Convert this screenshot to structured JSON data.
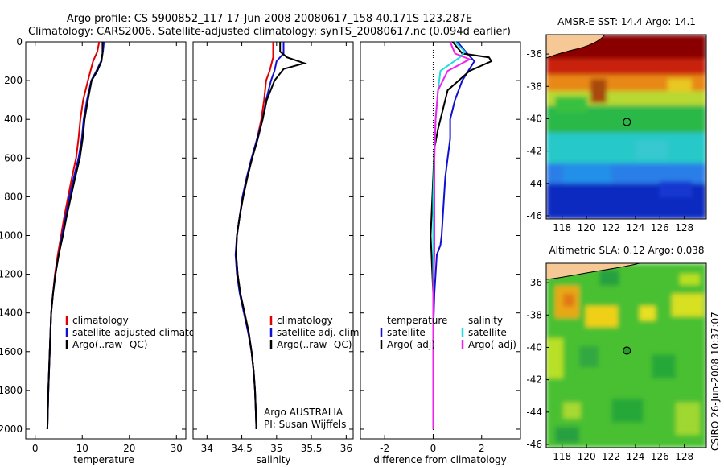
{
  "header": {
    "line1": "Argo profile: CS 5900852_117 17-Jun-2008 20080617_158 40.171S 123.287E",
    "line2": "Climatology: CARS2006. Satellite-adjusted climatology: synTS_20080617.nc (0.094d earlier)"
  },
  "side_text": "CSIRO 26-Jun-2008 10:37:07",
  "colors": {
    "climatology": "#e00000",
    "satellite": "#1010d0",
    "argo": "#000000",
    "sal_satellite": "#22dddd",
    "sal_argo": "#ee22ee"
  },
  "chart_data": [
    {
      "type": "line",
      "id": "temperature",
      "xlabel": "temperature",
      "ylabel": "",
      "xlim": [
        -2,
        32
      ],
      "ylim": [
        2050,
        0
      ],
      "xticks": [
        0,
        10,
        20,
        30
      ],
      "yticks": [
        0,
        200,
        400,
        600,
        800,
        1000,
        1200,
        1400,
        1600,
        1800,
        2000
      ],
      "legend": [
        "climatology",
        "satellite-adjusted climatology",
        "Argo(..raw -QC)"
      ],
      "series": [
        {
          "name": "climatology",
          "color_key": "climatology",
          "points": [
            [
              13.6,
              0
            ],
            [
              13.2,
              50
            ],
            [
              12.3,
              100
            ],
            [
              11.2,
              200
            ],
            [
              10.2,
              300
            ],
            [
              9.6,
              400
            ],
            [
              9.2,
              500
            ],
            [
              8.7,
              600
            ],
            [
              7.8,
              700
            ],
            [
              7.0,
              800
            ],
            [
              6.2,
              900
            ],
            [
              5.5,
              1000
            ],
            [
              4.8,
              1100
            ],
            [
              4.2,
              1200
            ],
            [
              3.8,
              1300
            ],
            [
              3.4,
              1400
            ],
            [
              3.1,
              1600
            ],
            [
              2.8,
              1800
            ],
            [
              2.6,
              2000
            ]
          ]
        },
        {
          "name": "satellite-adjusted climatology",
          "color_key": "satellite",
          "points": [
            [
              14.6,
              0
            ],
            [
              14.4,
              50
            ],
            [
              14.0,
              100
            ],
            [
              13.0,
              150
            ],
            [
              11.9,
              200
            ],
            [
              11.0,
              300
            ],
            [
              10.3,
              400
            ],
            [
              9.9,
              500
            ],
            [
              9.2,
              600
            ],
            [
              8.2,
              700
            ],
            [
              7.3,
              800
            ],
            [
              6.5,
              900
            ],
            [
              5.7,
              1000
            ],
            [
              5.0,
              1100
            ],
            [
              4.3,
              1200
            ],
            [
              3.8,
              1300
            ],
            [
              3.4,
              1400
            ],
            [
              3.1,
              1600
            ],
            [
              2.8,
              1800
            ],
            [
              2.6,
              2000
            ]
          ]
        },
        {
          "name": "Argo(..raw -QC)",
          "color_key": "argo",
          "points": [
            [
              14.3,
              0
            ],
            [
              14.3,
              60
            ],
            [
              14.1,
              100
            ],
            [
              13.2,
              150
            ],
            [
              12.0,
              200
            ],
            [
              11.2,
              300
            ],
            [
              10.5,
              400
            ],
            [
              10.1,
              500
            ],
            [
              9.5,
              600
            ],
            [
              8.5,
              700
            ],
            [
              7.6,
              800
            ],
            [
              6.7,
              900
            ],
            [
              5.9,
              1000
            ],
            [
              5.0,
              1100
            ],
            [
              4.3,
              1200
            ],
            [
              3.8,
              1300
            ],
            [
              3.4,
              1400
            ],
            [
              3.1,
              1600
            ],
            [
              2.8,
              1800
            ],
            [
              2.6,
              2000
            ]
          ]
        }
      ]
    },
    {
      "type": "line",
      "id": "salinity",
      "xlabel": "salinity",
      "xlim": [
        33.8,
        36.1
      ],
      "ylim": [
        2050,
        0
      ],
      "xticks": [
        34,
        34.5,
        35,
        35.5,
        36
      ],
      "yticks": [
        0,
        200,
        400,
        600,
        800,
        1000,
        1200,
        1400,
        1600,
        1800,
        2000
      ],
      "legend": [
        "climatology",
        "satellite adj. clim.",
        "Argo(..raw -QC)"
      ],
      "annotation_line1": "Argo AUSTRALIA",
      "annotation_line2": "PI: Susan Wijffels",
      "series": [
        {
          "name": "climatology",
          "color_key": "climatology",
          "points": [
            [
              34.95,
              0
            ],
            [
              34.95,
              80
            ],
            [
              34.9,
              150
            ],
            [
              34.85,
              200
            ],
            [
              34.82,
              300
            ],
            [
              34.78,
              400
            ],
            [
              34.72,
              500
            ],
            [
              34.65,
              600
            ],
            [
              34.58,
              700
            ],
            [
              34.52,
              800
            ],
            [
              34.47,
              900
            ],
            [
              34.43,
              1000
            ],
            [
              34.42,
              1100
            ],
            [
              34.44,
              1200
            ],
            [
              34.48,
              1300
            ],
            [
              34.54,
              1400
            ],
            [
              34.6,
              1500
            ],
            [
              34.64,
              1600
            ],
            [
              34.67,
              1700
            ],
            [
              34.69,
              1800
            ],
            [
              34.7,
              1900
            ],
            [
              34.71,
              2000
            ]
          ]
        },
        {
          "name": "satellite adj. clim.",
          "color_key": "satellite",
          "points": [
            [
              35.1,
              0
            ],
            [
              35.1,
              60
            ],
            [
              35.0,
              100
            ],
            [
              34.97,
              150
            ],
            [
              34.92,
              200
            ],
            [
              34.85,
              300
            ],
            [
              34.8,
              400
            ],
            [
              34.72,
              500
            ],
            [
              34.64,
              600
            ],
            [
              34.57,
              700
            ],
            [
              34.51,
              800
            ],
            [
              34.47,
              900
            ],
            [
              34.43,
              1000
            ],
            [
              34.41,
              1100
            ],
            [
              34.43,
              1200
            ],
            [
              34.47,
              1300
            ],
            [
              34.53,
              1400
            ],
            [
              34.59,
              1500
            ],
            [
              34.64,
              1600
            ],
            [
              34.67,
              1700
            ],
            [
              34.69,
              1800
            ],
            [
              34.7,
              1900
            ],
            [
              34.71,
              2000
            ]
          ]
        },
        {
          "name": "Argo(..raw -QC)",
          "color_key": "argo",
          "points": [
            [
              35.05,
              0
            ],
            [
              35.05,
              50
            ],
            [
              35.15,
              80
            ],
            [
              35.4,
              110
            ],
            [
              35.1,
              140
            ],
            [
              34.97,
              200
            ],
            [
              34.86,
              300
            ],
            [
              34.8,
              400
            ],
            [
              34.73,
              500
            ],
            [
              34.65,
              600
            ],
            [
              34.58,
              700
            ],
            [
              34.52,
              800
            ],
            [
              34.47,
              900
            ],
            [
              34.43,
              1000
            ],
            [
              34.42,
              1100
            ],
            [
              34.44,
              1200
            ],
            [
              34.48,
              1300
            ],
            [
              34.54,
              1400
            ],
            [
              34.6,
              1500
            ],
            [
              34.64,
              1600
            ],
            [
              34.67,
              1700
            ],
            [
              34.69,
              1800
            ],
            [
              34.7,
              1900
            ],
            [
              34.71,
              2000
            ]
          ]
        }
      ]
    },
    {
      "type": "line",
      "id": "difference",
      "xlabel": "difference from climatology",
      "xlim": [
        -3,
        3.6
      ],
      "ylim": [
        2050,
        0
      ],
      "xticks": [
        -2,
        0,
        2
      ],
      "yticks": [
        0,
        200,
        400,
        600,
        800,
        1000,
        1200,
        1400,
        1600,
        1800,
        2000
      ],
      "legend_left_title": "temperature",
      "legend_right_title": "salinity",
      "legend_left": [
        "satellite",
        "Argo(-adj)"
      ],
      "legend_right": [
        "satellite",
        "Argo(-adj)"
      ],
      "series": [
        {
          "name": "temperature satellite",
          "color_key": "satellite",
          "points": [
            [
              1.0,
              0
            ],
            [
              1.4,
              60
            ],
            [
              1.7,
              100
            ],
            [
              1.2,
              200
            ],
            [
              0.9,
              300
            ],
            [
              0.7,
              400
            ],
            [
              0.7,
              500
            ],
            [
              0.6,
              600
            ],
            [
              0.5,
              700
            ],
            [
              0.45,
              800
            ],
            [
              0.4,
              900
            ],
            [
              0.35,
              1000
            ],
            [
              0.3,
              1050
            ],
            [
              0.15,
              1100
            ],
            [
              0.05,
              1300
            ],
            [
              0.0,
              1500
            ],
            [
              0.0,
              2000
            ]
          ]
        },
        {
          "name": "temperature Argo(-adj)",
          "color_key": "argo",
          "points": [
            [
              0.8,
              0
            ],
            [
              1.2,
              60
            ],
            [
              2.3,
              80
            ],
            [
              2.4,
              100
            ],
            [
              1.5,
              150
            ],
            [
              0.6,
              250
            ],
            [
              0.4,
              350
            ],
            [
              0.2,
              450
            ],
            [
              0.05,
              550
            ],
            [
              0.0,
              700
            ],
            [
              -0.05,
              850
            ],
            [
              -0.1,
              1000
            ],
            [
              -0.05,
              1150
            ],
            [
              0.0,
              1300
            ],
            [
              0.0,
              2000
            ]
          ]
        },
        {
          "name": "salinity satellite",
          "color_key": "sal_satellite",
          "points": [
            [
              0.9,
              0
            ],
            [
              1.3,
              50
            ],
            [
              1.1,
              80
            ],
            [
              0.3,
              150
            ],
            [
              0.2,
              250
            ],
            [
              0.1,
              400
            ],
            [
              0.05,
              600
            ],
            [
              0.0,
              800
            ],
            [
              0.0,
              2000
            ]
          ]
        },
        {
          "name": "salinity Argo(-adj)",
          "color_key": "sal_argo",
          "points": [
            [
              0.7,
              0
            ],
            [
              0.9,
              60
            ],
            [
              1.5,
              90
            ],
            [
              0.6,
              150
            ],
            [
              0.2,
              250
            ],
            [
              0.1,
              400
            ],
            [
              0.05,
              600
            ],
            [
              0.05,
              800
            ],
            [
              0.05,
              1100
            ],
            [
              0.0,
              1300
            ],
            [
              0.0,
              2000
            ]
          ]
        }
      ]
    },
    {
      "type": "heatmap",
      "id": "sst",
      "title": "AMSR-E SST: 14.4 Argo: 14.1",
      "xlim": [
        116.7,
        129.8
      ],
      "ylim": [
        -46.2,
        -34.8
      ],
      "xticks": [
        118,
        120,
        122,
        124,
        126,
        128
      ],
      "yticks": [
        -36,
        -38,
        -40,
        -42,
        -44,
        -46
      ],
      "marker": {
        "lon": 123.3,
        "lat": -40.2
      },
      "land": "northern edge"
    },
    {
      "type": "heatmap",
      "id": "sla",
      "title": "Altimetric SLA: 0.12 Argo: 0.038",
      "xlim": [
        116.7,
        129.8
      ],
      "ylim": [
        -46.2,
        -34.8
      ],
      "xticks": [
        118,
        120,
        122,
        124,
        126,
        128
      ],
      "yticks": [
        -36,
        -38,
        -40,
        -42,
        -44,
        -46
      ],
      "marker": {
        "lon": 123.3,
        "lat": -40.2
      },
      "land": "northern edge"
    }
  ]
}
